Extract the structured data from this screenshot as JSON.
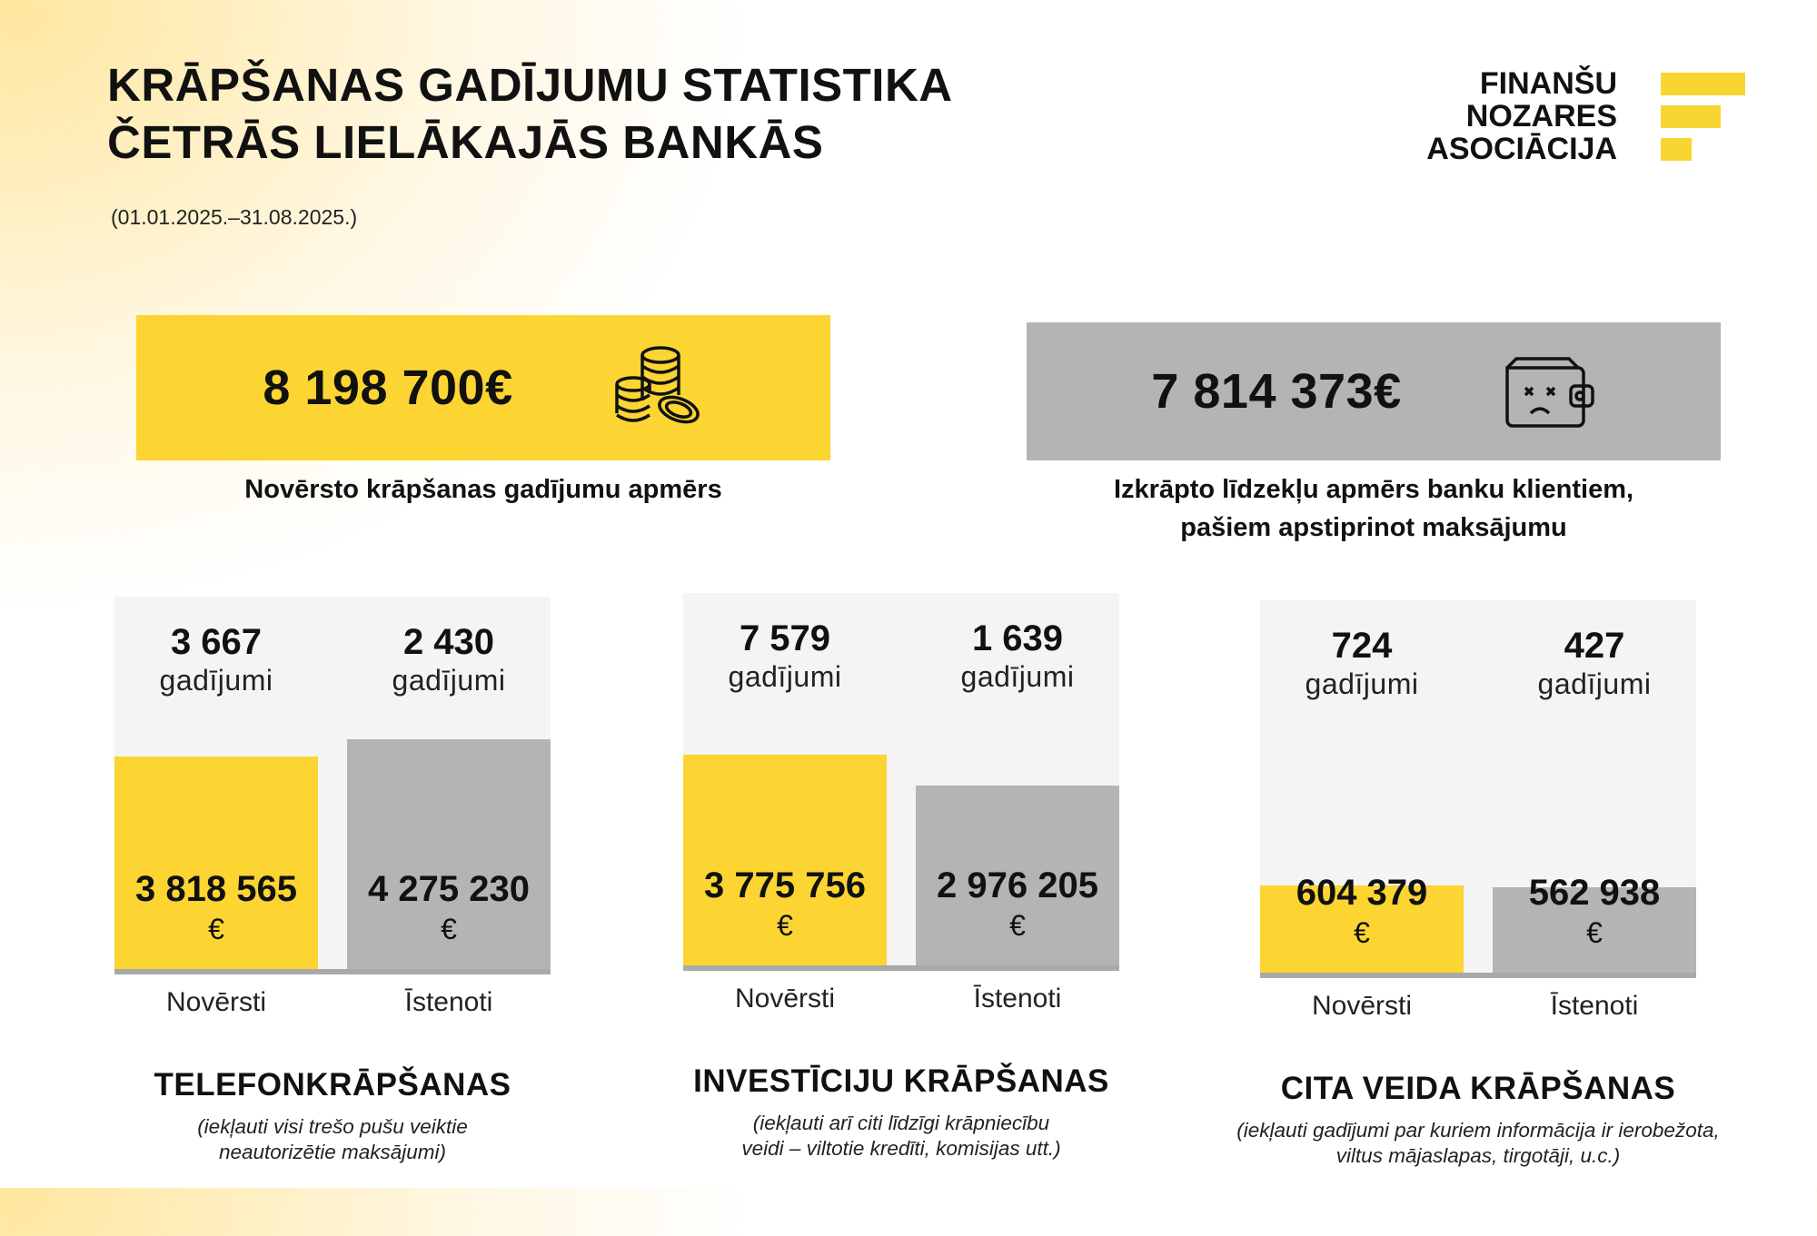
{
  "header": {
    "title_line1": "KRĀPŠANAS GADĪJUMU STATISTIKA",
    "title_line2": "ČETRĀS LIELĀKAJĀS BANKĀS",
    "period": "(01.01.2025.–31.08.2025.)"
  },
  "logo": {
    "line1": "FINANŠU",
    "line2": "NOZARES",
    "line3": "ASOCIĀCIJA"
  },
  "colors": {
    "prevented": "#fcd532",
    "executed": "#b4b4b4",
    "panel_background": "#f4f4f4"
  },
  "summary": {
    "prevented_total": "8 198 700€",
    "prevented_label": "Novērsto krāpšanas gadījumu apmērs",
    "prevented_icon": "coins-stack-icon",
    "defrauded_total": "7 814 373€",
    "defrauded_label_line1": "Izkrāpto līdzekļu apmērs banku klientiem,",
    "defrauded_label_line2": "pašiem apstiprinot maksājumu",
    "defrauded_icon": "empty-wallet-icon"
  },
  "chart_data": [
    {
      "type": "bar",
      "title": "TELEFONKRĀPŠANAS",
      "note_line1": "(iekļauti visi trešo pušu veiktie",
      "note_line2": "neautorizētie maksājumi)",
      "categories": [
        "Novērsti",
        "Īstenoti"
      ],
      "values": [
        3818565,
        4275230
      ],
      "value_labels": [
        "3 818 565",
        "4 275 230"
      ],
      "currency": "€",
      "case_counts": [
        "3 667",
        "2 430"
      ],
      "case_unit": "gadījumi"
    },
    {
      "type": "bar",
      "title": "INVESTĪCIJU KRĀPŠANAS",
      "note_line1": "(iekļauti arī citi līdzīgi krāpniecību",
      "note_line2": "veidi – viltotie kredīti, komisijas utt.)",
      "categories": [
        "Novērsti",
        "Īstenoti"
      ],
      "values": [
        3775756,
        2976205
      ],
      "value_labels": [
        "3 775 756",
        "2 976 205"
      ],
      "currency": "€",
      "case_counts": [
        "7 579",
        "1 639"
      ],
      "case_unit": "gadījumi"
    },
    {
      "type": "bar",
      "title": "CITA VEIDA KRĀPŠANAS",
      "note_line1": "(iekļauti gadījumi par kuriem informācija ir ierobežota,",
      "note_line2": "viltus mājaslapas, tirgotāji,  u.c.)",
      "categories": [
        "Novērsti",
        "Īstenoti"
      ],
      "values": [
        604379,
        562938
      ],
      "value_labels": [
        "604 379",
        "562 938"
      ],
      "currency": "€",
      "case_counts": [
        "724",
        "427"
      ],
      "case_unit": "gadījumi"
    }
  ]
}
